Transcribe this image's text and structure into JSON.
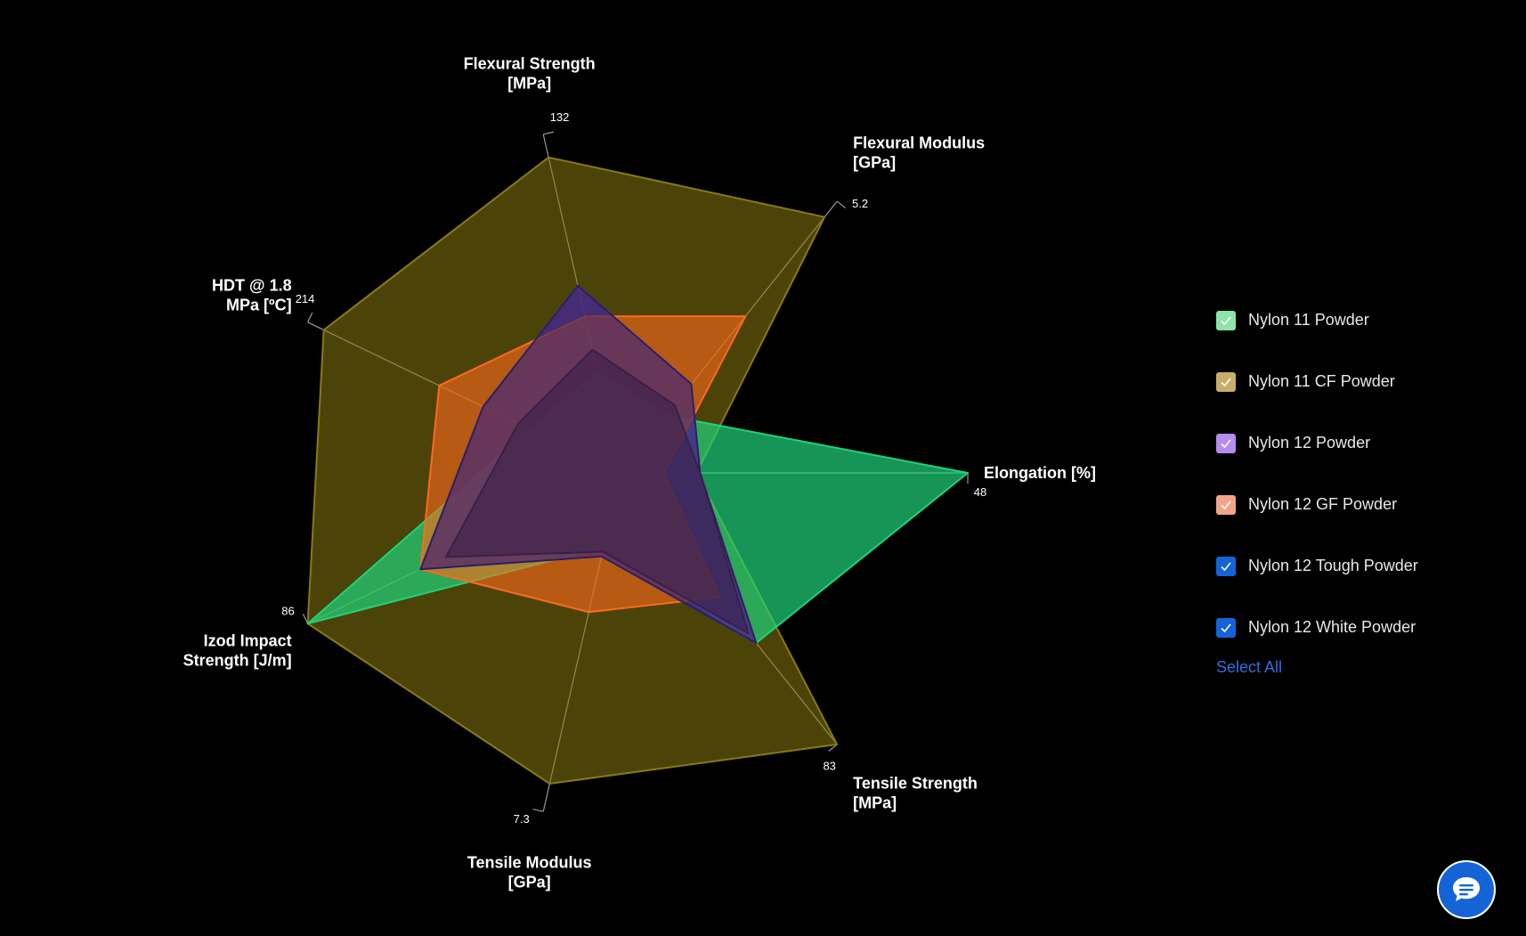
{
  "chart_data": {
    "type": "radar",
    "axes": [
      {
        "label": "Elongation [%]",
        "max": 48,
        "tick": "48"
      },
      {
        "label": "Tensile Strength [MPa]",
        "max": 83,
        "tick": "83"
      },
      {
        "label": "Tensile Modulus [GPa]",
        "max": 7.3,
        "tick": "7.3"
      },
      {
        "label": "Izod Impact Strength [J/m]",
        "max": 86,
        "tick": "86"
      },
      {
        "label": "HDT @ 1.8 MPa [ºC]",
        "max": 214,
        "tick": "214"
      },
      {
        "label": "Flexural Strength [MPa]",
        "max": 132,
        "tick": "132"
      },
      {
        "label": "Flexural Modulus [GPa]",
        "max": 5.2,
        "tick": "5.2"
      }
    ],
    "series": [
      {
        "name": "Nylon 11 CF Powder",
        "color": "#8a7a10",
        "values": [
          10.5,
          83,
          6.7,
          86,
          203,
          123,
          4.9
        ]
      },
      {
        "name": "Nylon 11 Powder",
        "color": "#1fd47a",
        "values": [
          48,
          52,
          1.6,
          86,
          62,
          39,
          1.1
        ]
      },
      {
        "name": "Nylon 12 Powder",
        "color": "#8a3cf0",
        "values": [
          11,
          52,
          1.8,
          55,
          94,
          73,
          1.7
        ]
      },
      {
        "name": "Nylon 12 GF Powder",
        "color": "#ff6a1a",
        "values": [
          6,
          38,
          3.0,
          55,
          124,
          61,
          3.0
        ]
      },
      {
        "name": "Nylon 12 Tough Powder",
        "color": "#2a2060",
        "values": [
          11,
          52,
          1.8,
          55,
          94,
          73,
          1.7
        ]
      },
      {
        "name": "Nylon 12 White Powder",
        "color": "#3a1f4a",
        "values": [
          11,
          49,
          1.7,
          48,
          70,
          48,
          1.3
        ]
      }
    ]
  },
  "legend": {
    "items": [
      {
        "label": "Nylon 11 Powder",
        "color": "#8de3a8",
        "check": "#ffffff"
      },
      {
        "label": "Nylon 11 CF Powder",
        "color": "#c8ad6a",
        "check": "#ffffff"
      },
      {
        "label": "Nylon 12 Powder",
        "color": "#b48cf0",
        "check": "#ffffff"
      },
      {
        "label": "Nylon 12 GF Powder",
        "color": "#f2a488",
        "check": "#ffffff"
      },
      {
        "label": "Nylon 12 Tough Powder",
        "color": "#1464d8",
        "check": "#ffffff"
      },
      {
        "label": "Nylon 12 White Powder",
        "color": "#1464d8",
        "check": "#ffffff"
      }
    ],
    "select_all": "Select All"
  },
  "chat": {
    "icon": "chat-bubble-icon"
  }
}
